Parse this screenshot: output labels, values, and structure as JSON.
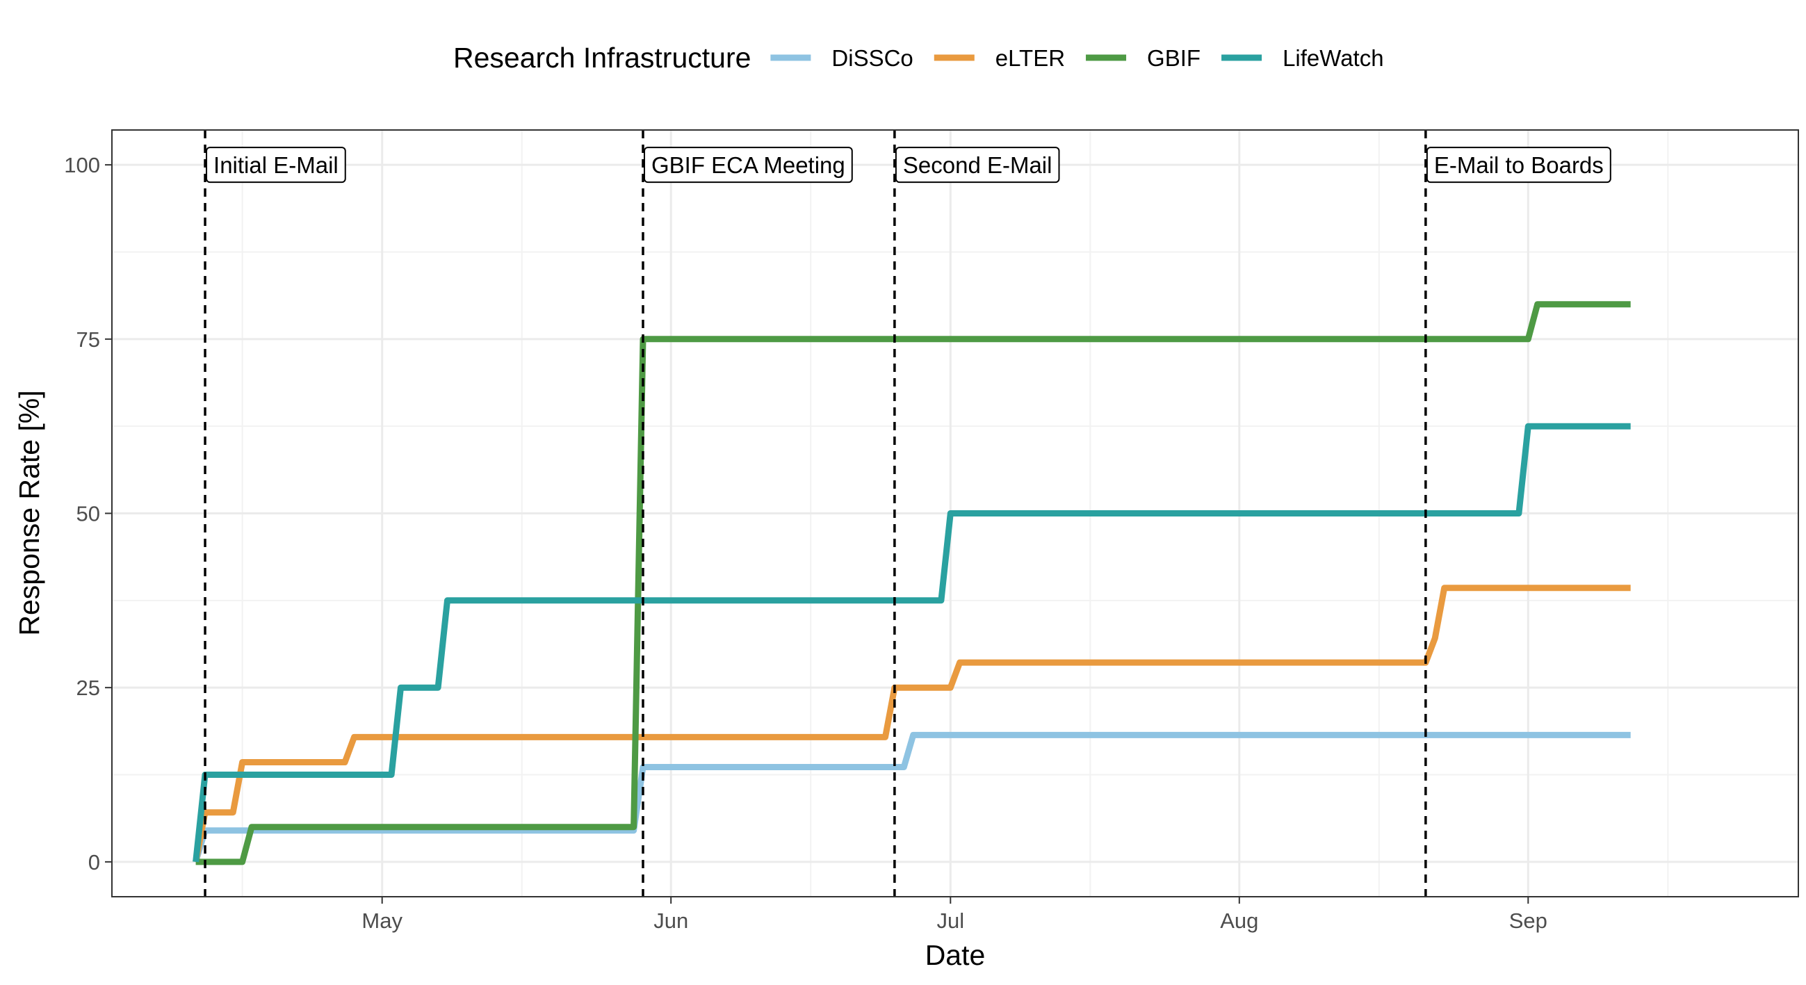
{
  "chart_data": {
    "type": "line",
    "title": "",
    "xlabel": "Date",
    "ylabel": "Response Rate [%]",
    "x_type": "date",
    "xlim": [
      "2024-04-02",
      "2024-09-30"
    ],
    "ylim": [
      -5,
      105
    ],
    "y_ticks": [
      0,
      25,
      50,
      75,
      100
    ],
    "y_minor_ticks": [
      12.5,
      37.5,
      62.5,
      87.5
    ],
    "x_ticks": [
      {
        "date": "2024-05-01",
        "label": "May"
      },
      {
        "date": "2024-06-01",
        "label": "Jun"
      },
      {
        "date": "2024-07-01",
        "label": "Jul"
      },
      {
        "date": "2024-08-01",
        "label": "Aug"
      },
      {
        "date": "2024-09-01",
        "label": "Sep"
      }
    ],
    "x_minor_ticks": [
      "2024-04-16",
      "2024-05-16",
      "2024-06-16",
      "2024-07-16",
      "2024-08-16",
      "2024-09-16"
    ],
    "grid": true,
    "legend": {
      "title": "Research Infrastructure",
      "position": "top"
    },
    "annotations": [
      {
        "date": "2024-04-12",
        "label": "Initial E-Mail"
      },
      {
        "date": "2024-05-29",
        "label": "GBIF ECA Meeting"
      },
      {
        "date": "2024-06-25",
        "label": "Second E-Mail"
      },
      {
        "date": "2024-08-21",
        "label": "E-Mail to Boards"
      }
    ],
    "series": [
      {
        "name": "DiSSCo",
        "color": "#8EC3E2",
        "points": [
          [
            "2024-04-11",
            0
          ],
          [
            "2024-04-12",
            4.5
          ],
          [
            "2024-05-28",
            4.5
          ],
          [
            "2024-05-29",
            13.6
          ],
          [
            "2024-06-26",
            13.6
          ],
          [
            "2024-06-27",
            18.2
          ],
          [
            "2024-09-12",
            18.2
          ]
        ]
      },
      {
        "name": "eLTER",
        "color": "#E99A3F",
        "points": [
          [
            "2024-04-11",
            0
          ],
          [
            "2024-04-12",
            7.1
          ],
          [
            "2024-04-15",
            7.1
          ],
          [
            "2024-04-16",
            14.3
          ],
          [
            "2024-04-27",
            14.3
          ],
          [
            "2024-04-28",
            17.9
          ],
          [
            "2024-06-24",
            17.9
          ],
          [
            "2024-06-25",
            25
          ],
          [
            "2024-07-01",
            25
          ],
          [
            "2024-07-02",
            28.6
          ],
          [
            "2024-08-21",
            28.6
          ],
          [
            "2024-08-22",
            32.1
          ],
          [
            "2024-08-23",
            39.3
          ],
          [
            "2024-09-12",
            39.3
          ]
        ]
      },
      {
        "name": "GBIF",
        "color": "#4E9A44",
        "points": [
          [
            "2024-04-11",
            0
          ],
          [
            "2024-04-16",
            0
          ],
          [
            "2024-04-17",
            5
          ],
          [
            "2024-05-28",
            5
          ],
          [
            "2024-05-29",
            75
          ],
          [
            "2024-09-01",
            75
          ],
          [
            "2024-09-02",
            80
          ],
          [
            "2024-09-12",
            80
          ]
        ]
      },
      {
        "name": "LifeWatch",
        "color": "#2AA1A0",
        "points": [
          [
            "2024-04-11",
            0
          ],
          [
            "2024-04-12",
            12.5
          ],
          [
            "2024-05-02",
            12.5
          ],
          [
            "2024-05-03",
            25
          ],
          [
            "2024-05-07",
            25
          ],
          [
            "2024-05-08",
            37.5
          ],
          [
            "2024-06-30",
            37.5
          ],
          [
            "2024-07-01",
            50
          ],
          [
            "2024-08-31",
            50
          ],
          [
            "2024-09-01",
            62.5
          ],
          [
            "2024-09-12",
            62.5
          ]
        ]
      }
    ]
  }
}
